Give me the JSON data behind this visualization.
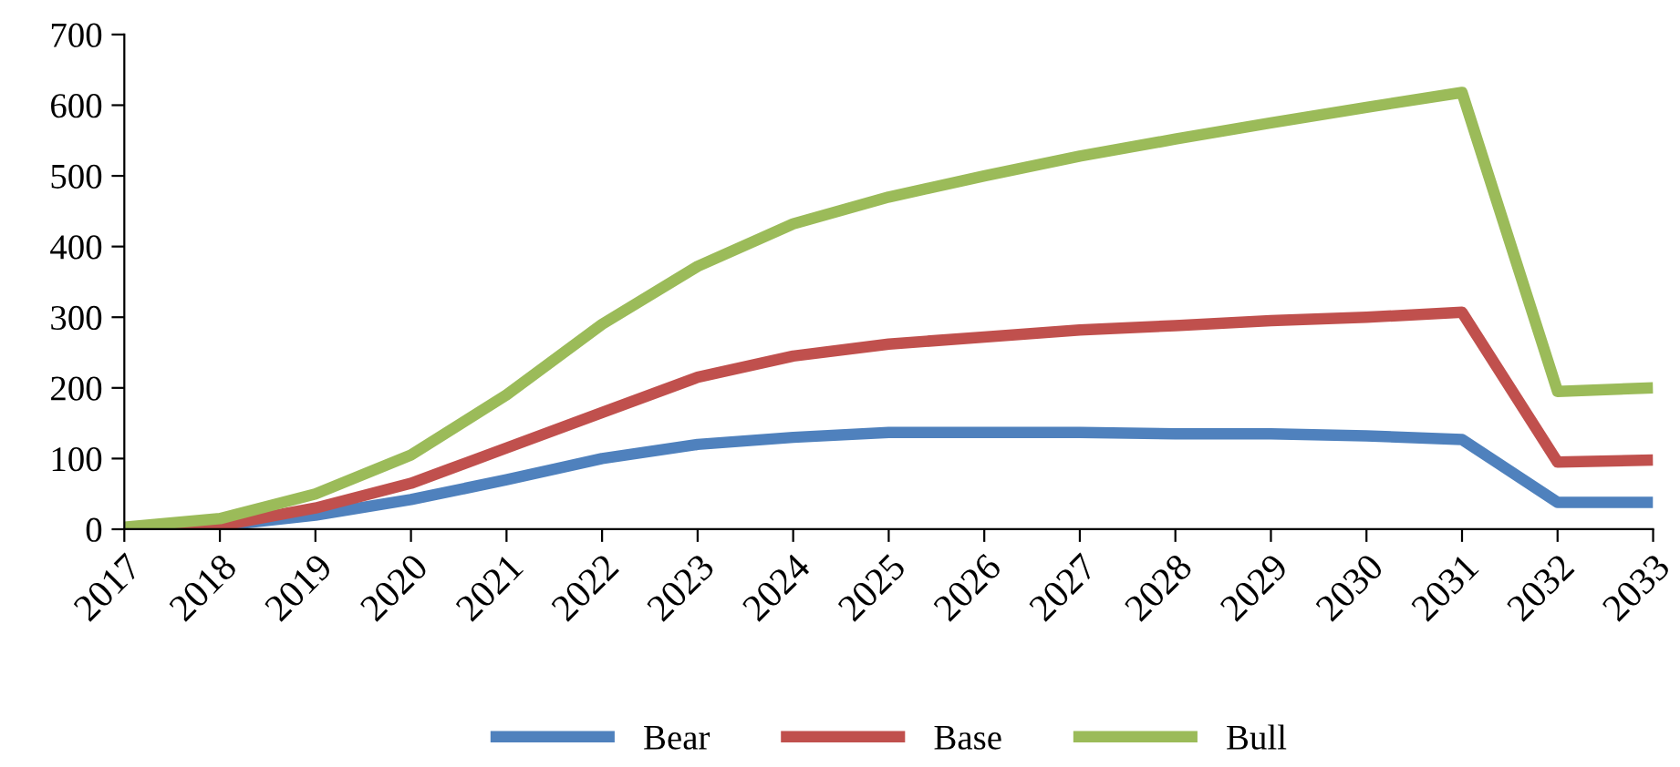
{
  "chart_data": {
    "type": "line",
    "categories": [
      "2017",
      "2018",
      "2019",
      "2020",
      "2021",
      "2022",
      "2023",
      "2024",
      "2025",
      "2026",
      "2027",
      "2028",
      "2029",
      "2030",
      "2031",
      "2032",
      "2033"
    ],
    "series": [
      {
        "name": "Bear",
        "color": "#4f81bd",
        "values": [
          0,
          5,
          20,
          42,
          70,
          100,
          120,
          130,
          137,
          137,
          137,
          135,
          135,
          132,
          127,
          38,
          38
        ]
      },
      {
        "name": "Base",
        "color": "#c0504d",
        "values": [
          0,
          5,
          30,
          65,
          115,
          165,
          215,
          245,
          262,
          272,
          282,
          288,
          295,
          300,
          307,
          95,
          98
        ]
      },
      {
        "name": "Bull",
        "color": "#9bbb59",
        "values": [
          3,
          15,
          50,
          105,
          190,
          290,
          372,
          432,
          470,
          500,
          528,
          552,
          575,
          597,
          618,
          195,
          200
        ]
      }
    ],
    "ylim": [
      0,
      700
    ],
    "yticks": [
      0,
      100,
      200,
      300,
      400,
      500,
      600,
      700
    ],
    "grid": false,
    "legend": "bottom",
    "marker": "none",
    "line_style": "solid"
  }
}
